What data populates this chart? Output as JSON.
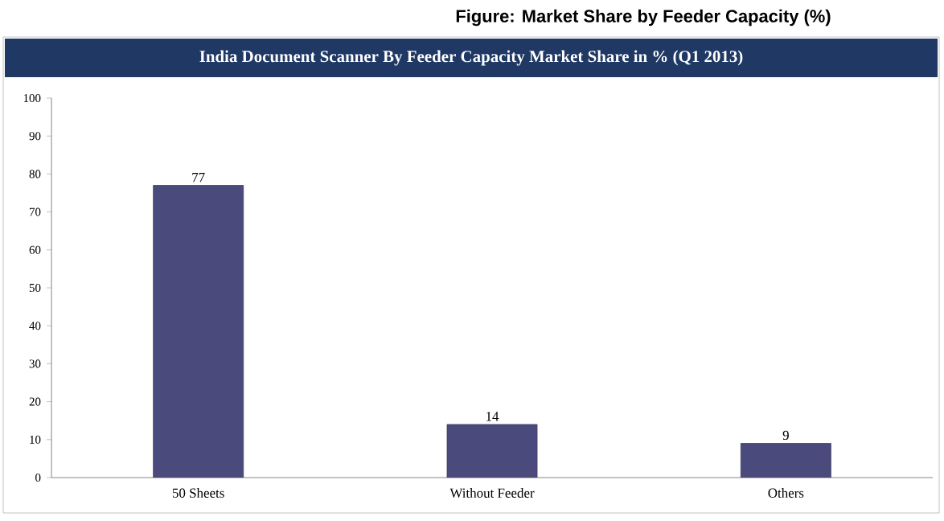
{
  "chart_data": {
    "type": "bar",
    "title": "Figure: Market Share by Feeder Capacity (%)",
    "subtitle": "India Document Scanner By Feeder Capacity Market Share in % (Q1 2013)",
    "categories": [
      "50 Sheets",
      "Without Feeder",
      "Others"
    ],
    "values": [
      77,
      14,
      9
    ],
    "color": "#4b4a7c",
    "ylim": [
      0,
      100
    ],
    "yticks": [
      0,
      10,
      20,
      30,
      40,
      50,
      60,
      70,
      80,
      90,
      100
    ],
    "data_labels": true,
    "grid": false
  }
}
